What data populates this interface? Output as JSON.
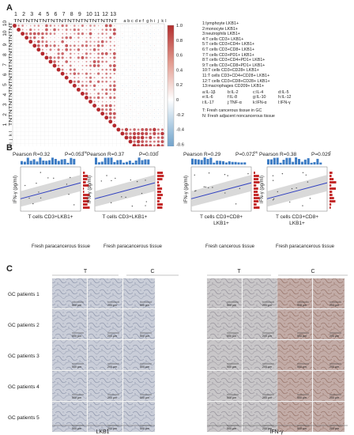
{
  "figure": {
    "panel_a": {
      "label": "A",
      "column_numbers": [
        "1",
        "2",
        "3",
        "4",
        "5",
        "6",
        "7",
        "8",
        "9",
        "10",
        "11",
        "12",
        "13"
      ],
      "column_letters": [
        "a",
        "b",
        "c",
        "d",
        "e",
        "f",
        "g",
        "h",
        "i",
        "j",
        "k",
        "l"
      ],
      "row_numbers": [
        "1",
        "2",
        "3",
        "4",
        "5",
        "6",
        "7",
        "8",
        "9",
        "10",
        "10"
      ],
      "row_letters": [
        "a",
        "b",
        "c",
        "d",
        "e",
        "f",
        "g",
        "h",
        "i",
        "j",
        "k",
        "l"
      ],
      "tn_label": "TNTNTNTNTNTNTNTNTNTNTNTNT",
      "colorbar_ticks": [
        "1.0",
        "0.8",
        "0.6",
        "0.4",
        "0.2",
        "0",
        "-0.2",
        "-0.4",
        "-0.6",
        "-0.8",
        "-1.0"
      ],
      "legend": [
        "1:lymphoyte LKB1+",
        "2:monocyte LKB1+",
        "3:neutrophils LKB1+",
        "4:T cells CD3+ LKB1+",
        "5:T cells CD3+CD4+ LKB1+",
        "6:T cells CD3+CD8+ LKB1+",
        "7:T cells CD3+PD1+ LKB1+",
        "8:T cells CD3+CD4+PD1+ LKB1+",
        "9:T cells CD3+CD8+PD1+ LKB1+",
        "10:T cells CD3+CD28+ LKB1+",
        "11:T cells CD3+CD4+CD28+ LKB1+",
        "12:T cells CD3+CD8+CD28+ LKB1+",
        "13:macrophages CD209+ LKB1+"
      ],
      "cytokines": [
        [
          "a:IL-1β",
          "b:IL-2",
          "c:IL-4",
          "d:IL-5"
        ],
        [
          "e:IL-6",
          "f:IL-8",
          "g:IL-10",
          "h:IL-12"
        ],
        [
          "i:IL-17",
          "j:TNF-α",
          "k:IFN-α",
          "l:IFN-γ"
        ]
      ],
      "tissue_keys": [
        "T: Fresh cancerous tissue in GC",
        "N: Fresh adjacent noncancerous tissue"
      ]
    },
    "panel_b": {
      "label": "B",
      "plots": [
        {
          "pearson": "Pearson R=0.32",
          "p": "P=0.053",
          "p_sup": "ns",
          "ylabel": "IFN-γ (pg/ml)",
          "xlabel": [
            "T cells CD3+LKB1+"
          ]
        },
        {
          "pearson": "Pearson R=0.37",
          "p": "P=0.030",
          "p_sup": "*",
          "ylabel": "IFN-γ (pg/ml)",
          "xlabel": [
            "T cells CD3+LKB1+"
          ]
        },
        {
          "pearson": "Pearson R=0.29",
          "p": "P=0.072",
          "p_sup": "ns",
          "ylabel": "IFN-γ (pg/ml)",
          "xlabel": [
            "T cells CD3+CD8+",
            "LKB1+"
          ]
        },
        {
          "pearson": "Pearson R=0.38",
          "p": "P=0.029",
          "p_sup": "*",
          "ylabel": "IFN-γ (pg/ml)",
          "xlabel": [
            "T cells CD3+CD8+",
            "LKB1+"
          ]
        }
      ],
      "group_labels": [
        "Fresh paracancerous tissue",
        "Fresh paracancerous tissue",
        "Fresh cancerous tissue",
        "Fresh paracancerous tissue"
      ]
    },
    "panel_c": {
      "label": "C",
      "col_headers": [
        "T",
        "C",
        "T",
        "C"
      ],
      "rows": [
        "GC patients 1",
        "GC patients 2",
        "GC patients 3",
        "GC patients 4",
        "GC patients 5"
      ],
      "scale_left": "500 μm",
      "scale_right": "200 μm",
      "bottom_labels": [
        "LKB1",
        "IFN-γ"
      ],
      "stain_colors": {
        "lkb1": "#c9cdd8",
        "ifng_t": "#c8c6c8",
        "ifng_c": "#c2aba6"
      }
    }
  }
}
